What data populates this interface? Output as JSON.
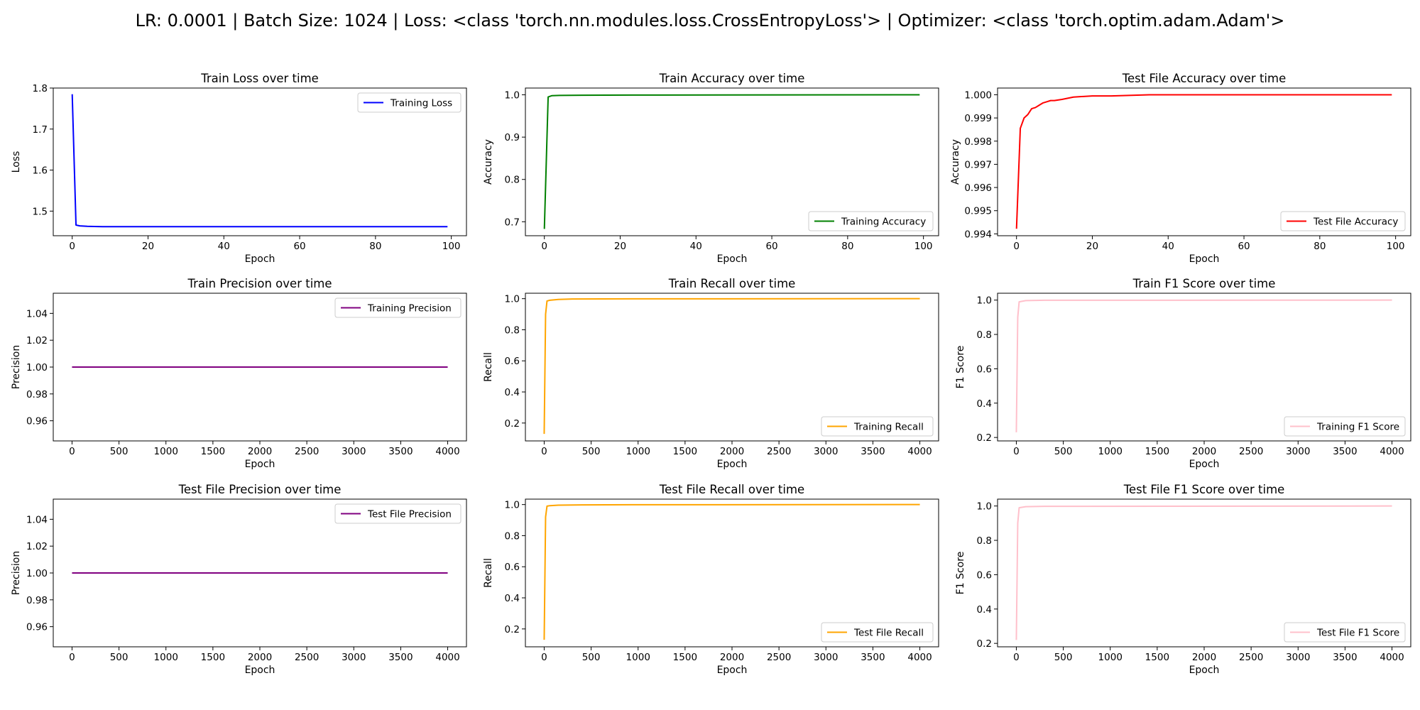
{
  "figure": {
    "suptitle": "LR: 0.0001 | Batch Size: 1024 | Loss: <class 'torch.nn.modules.loss.CrossEntropyLoss'> | Optimizer: <class 'torch.optim.adam.Adam'>"
  },
  "chart_data": [
    {
      "type": "line",
      "title": "Train Loss over time",
      "xlabel": "Epoch",
      "ylabel": "Loss",
      "xlim": [
        -5,
        104
      ],
      "ylim": [
        1.44,
        1.8
      ],
      "xticks": [
        0,
        20,
        40,
        60,
        80,
        100
      ],
      "yticks": [
        1.5,
        1.6,
        1.7,
        1.8
      ],
      "xtick_labels": [
        "0",
        "20",
        "40",
        "60",
        "80",
        "100"
      ],
      "ytick_labels": [
        "1.5",
        "1.6",
        "1.7",
        "1.8"
      ],
      "legend": "upper right",
      "grid": false,
      "series": [
        {
          "name": "Training Loss",
          "color": "#0000ff",
          "points": [
            [
              0,
              1.785
            ],
            [
              1,
              1.466
            ],
            [
              2,
              1.464
            ],
            [
              4,
              1.463
            ],
            [
              8,
              1.462
            ],
            [
              20,
              1.462
            ],
            [
              50,
              1.462
            ],
            [
              99,
              1.462
            ]
          ]
        }
      ]
    },
    {
      "type": "line",
      "title": "Train Accuracy over time",
      "xlabel": "Epoch",
      "ylabel": "Accuracy",
      "xlim": [
        -5,
        104
      ],
      "ylim": [
        0.667,
        1.016
      ],
      "xticks": [
        0,
        20,
        40,
        60,
        80,
        100
      ],
      "yticks": [
        0.7,
        0.8,
        0.9,
        1.0
      ],
      "xtick_labels": [
        "0",
        "20",
        "40",
        "60",
        "80",
        "100"
      ],
      "ytick_labels": [
        "0.7",
        "0.8",
        "0.9",
        "1.0"
      ],
      "legend": "lower right",
      "grid": false,
      "series": [
        {
          "name": "Training Accuracy",
          "color": "#008000",
          "points": [
            [
              0,
              0.683
            ],
            [
              1,
              0.995
            ],
            [
              2,
              0.998
            ],
            [
              4,
              0.9985
            ],
            [
              10,
              0.999
            ],
            [
              30,
              0.9995
            ],
            [
              99,
              1.0
            ]
          ]
        }
      ]
    },
    {
      "type": "line",
      "title": "Test File Accuracy over time",
      "xlabel": "Epoch",
      "ylabel": "Accuracy",
      "xlim": [
        -5,
        104
      ],
      "ylim": [
        0.99392,
        1.00029
      ],
      "xticks": [
        0,
        20,
        40,
        60,
        80,
        100
      ],
      "yticks": [
        0.994,
        0.995,
        0.996,
        0.997,
        0.998,
        0.999,
        1.0
      ],
      "xtick_labels": [
        "0",
        "20",
        "40",
        "60",
        "80",
        "100"
      ],
      "ytick_labels": [
        "0.994",
        "0.995",
        "0.996",
        "0.997",
        "0.998",
        "0.999",
        "1.000"
      ],
      "legend": "lower right",
      "grid": false,
      "series": [
        {
          "name": "Test File Accuracy",
          "color": "#ff0000",
          "points": [
            [
              0,
              0.99422
            ],
            [
              1,
              0.99855
            ],
            [
              2,
              0.999
            ],
            [
              3,
              0.99915
            ],
            [
              4,
              0.9994
            ],
            [
              5,
              0.99945
            ],
            [
              6,
              0.99955
            ],
            [
              7,
              0.99965
            ],
            [
              8,
              0.9997
            ],
            [
              9,
              0.99975
            ],
            [
              10,
              0.99975
            ],
            [
              12,
              0.9998
            ],
            [
              15,
              0.9999
            ],
            [
              20,
              0.99995
            ],
            [
              25,
              0.99995
            ],
            [
              35,
              1.0
            ],
            [
              99,
              1.0
            ]
          ]
        }
      ]
    },
    {
      "type": "line",
      "title": "Train Precision over time",
      "xlabel": "Epoch",
      "ylabel": "Precision",
      "xlim": [
        -200,
        4200
      ],
      "ylim": [
        0.945,
        1.055
      ],
      "xticks": [
        0,
        500,
        1000,
        1500,
        2000,
        2500,
        3000,
        3500,
        4000
      ],
      "yticks": [
        0.96,
        0.98,
        1.0,
        1.02,
        1.04
      ],
      "xtick_labels": [
        "0",
        "500",
        "1000",
        "1500",
        "2000",
        "2500",
        "3000",
        "3500",
        "4000"
      ],
      "ytick_labels": [
        "0.96",
        "0.98",
        "1.00",
        "1.02",
        "1.04"
      ],
      "legend": "upper right",
      "grid": false,
      "series": [
        {
          "name": "Training Precision",
          "color": "#800080",
          "points": [
            [
              0,
              1.0
            ],
            [
              4000,
              1.0
            ]
          ]
        }
      ]
    },
    {
      "type": "line",
      "title": "Train Recall over time",
      "xlabel": "Epoch",
      "ylabel": "Recall",
      "xlim": [
        -200,
        4200
      ],
      "ylim": [
        0.085,
        1.035
      ],
      "xticks": [
        0,
        500,
        1000,
        1500,
        2000,
        2500,
        3000,
        3500,
        4000
      ],
      "yticks": [
        0.2,
        0.4,
        0.6,
        0.8,
        1.0
      ],
      "xtick_labels": [
        "0",
        "500",
        "1000",
        "1500",
        "2000",
        "2500",
        "3000",
        "3500",
        "4000"
      ],
      "ytick_labels": [
        "0.2",
        "0.4",
        "0.6",
        "0.8",
        "1.0"
      ],
      "legend": "lower right",
      "grid": false,
      "series": [
        {
          "name": "Training Recall",
          "color": "#ffa500",
          "points": [
            [
              0,
              0.13
            ],
            [
              15,
              0.9
            ],
            [
              30,
              0.985
            ],
            [
              60,
              0.99
            ],
            [
              150,
              0.995
            ],
            [
              300,
              0.998
            ],
            [
              1000,
              0.999
            ],
            [
              4000,
              1.0
            ]
          ]
        }
      ]
    },
    {
      "type": "line",
      "title": "Train F1 Score over time",
      "xlabel": "Epoch",
      "ylabel": "F1 Score",
      "xlim": [
        -200,
        4200
      ],
      "ylim": [
        0.18,
        1.04
      ],
      "xticks": [
        0,
        500,
        1000,
        1500,
        2000,
        2500,
        3000,
        3500,
        4000
      ],
      "yticks": [
        0.2,
        0.4,
        0.6,
        0.8,
        1.0
      ],
      "xtick_labels": [
        "0",
        "500",
        "1000",
        "1500",
        "2000",
        "2500",
        "3000",
        "3500",
        "4000"
      ],
      "ytick_labels": [
        "0.2",
        "0.4",
        "0.6",
        "0.8",
        "1.0"
      ],
      "legend": "lower right",
      "grid": false,
      "series": [
        {
          "name": "Training F1 Score",
          "color": "#ffc0cb",
          "points": [
            [
              0,
              0.23
            ],
            [
              15,
              0.9
            ],
            [
              30,
              0.99
            ],
            [
              100,
              0.997
            ],
            [
              300,
              0.999
            ],
            [
              4000,
              1.0
            ]
          ]
        }
      ]
    },
    {
      "type": "line",
      "title": "Test File Precision over time",
      "xlabel": "Epoch",
      "ylabel": "Precision",
      "xlim": [
        -200,
        4200
      ],
      "ylim": [
        0.945,
        1.055
      ],
      "xticks": [
        0,
        500,
        1000,
        1500,
        2000,
        2500,
        3000,
        3500,
        4000
      ],
      "yticks": [
        0.96,
        0.98,
        1.0,
        1.02,
        1.04
      ],
      "xtick_labels": [
        "0",
        "500",
        "1000",
        "1500",
        "2000",
        "2500",
        "3000",
        "3500",
        "4000"
      ],
      "ytick_labels": [
        "0.96",
        "0.98",
        "1.00",
        "1.02",
        "1.04"
      ],
      "legend": "upper right",
      "grid": false,
      "series": [
        {
          "name": "Test File Precision",
          "color": "#800080",
          "points": [
            [
              0,
              1.0
            ],
            [
              4000,
              1.0
            ]
          ]
        }
      ]
    },
    {
      "type": "line",
      "title": "Test File Recall over time",
      "xlabel": "Epoch",
      "ylabel": "Recall",
      "xlim": [
        -200,
        4200
      ],
      "ylim": [
        0.085,
        1.035
      ],
      "xticks": [
        0,
        500,
        1000,
        1500,
        2000,
        2500,
        3000,
        3500,
        4000
      ],
      "yticks": [
        0.2,
        0.4,
        0.6,
        0.8,
        1.0
      ],
      "xtick_labels": [
        "0",
        "500",
        "1000",
        "1500",
        "2000",
        "2500",
        "3000",
        "3500",
        "4000"
      ],
      "ytick_labels": [
        "0.2",
        "0.4",
        "0.6",
        "0.8",
        "1.0"
      ],
      "legend": "lower right",
      "grid": false,
      "series": [
        {
          "name": "Test File Recall",
          "color": "#ffa500",
          "points": [
            [
              0,
              0.13
            ],
            [
              15,
              0.92
            ],
            [
              30,
              0.99
            ],
            [
              60,
              0.993
            ],
            [
              150,
              0.996
            ],
            [
              400,
              0.998
            ],
            [
              1000,
              0.999
            ],
            [
              4000,
              1.0
            ]
          ]
        }
      ]
    },
    {
      "type": "line",
      "title": "Test File F1 Score over time",
      "xlabel": "Epoch",
      "ylabel": "F1 Score",
      "xlim": [
        -200,
        4200
      ],
      "ylim": [
        0.18,
        1.04
      ],
      "xticks": [
        0,
        500,
        1000,
        1500,
        2000,
        2500,
        3000,
        3500,
        4000
      ],
      "yticks": [
        0.2,
        0.4,
        0.6,
        0.8,
        1.0
      ],
      "xtick_labels": [
        "0",
        "500",
        "1000",
        "1500",
        "2000",
        "2500",
        "3000",
        "3500",
        "4000"
      ],
      "ytick_labels": [
        "0.2",
        "0.4",
        "0.6",
        "0.8",
        "1.0"
      ],
      "legend": "lower right",
      "grid": false,
      "series": [
        {
          "name": "Test File F1 Score",
          "color": "#ffc0cb",
          "points": [
            [
              0,
              0.22
            ],
            [
              15,
              0.9
            ],
            [
              30,
              0.99
            ],
            [
              100,
              0.996
            ],
            [
              300,
              0.998
            ],
            [
              4000,
              1.0
            ]
          ]
        }
      ]
    }
  ]
}
